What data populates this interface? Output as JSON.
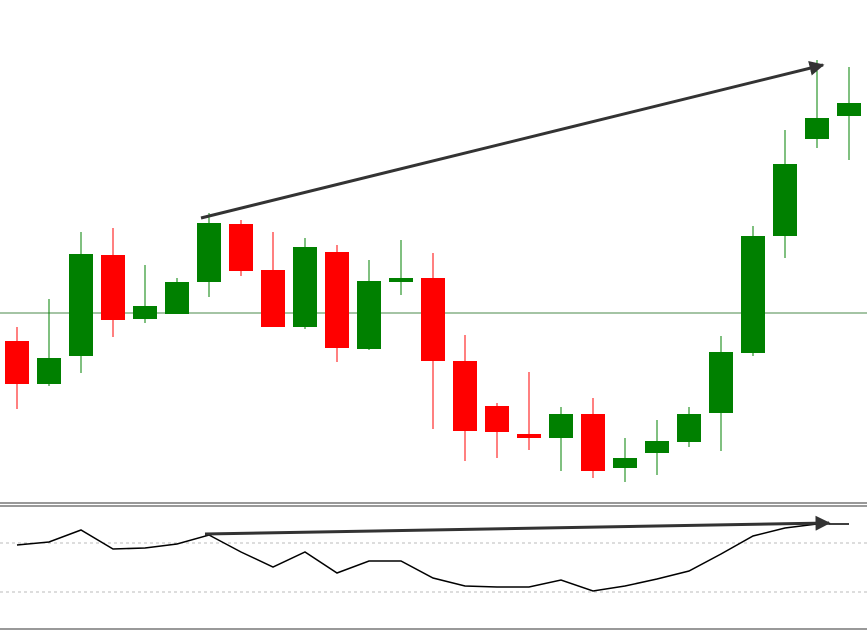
{
  "chart_data": [
    {
      "type": "candlestick",
      "open": [
        159,
        116,
        144,
        245,
        181,
        186,
        218,
        276,
        230,
        173,
        248,
        151,
        218,
        222,
        139,
        94,
        66,
        62,
        86,
        32,
        47,
        58,
        87,
        147,
        264,
        361,
        384
      ],
      "high": [
        173,
        201,
        268,
        272,
        235,
        222,
        287,
        280,
        268,
        262,
        255,
        240,
        260,
        247,
        165,
        97,
        128,
        93,
        102,
        62,
        80,
        93,
        164,
        274,
        370,
        440,
        433
      ],
      "low": [
        91,
        114,
        127,
        163,
        177,
        186,
        203,
        224,
        173,
        171,
        138,
        150,
        205,
        71,
        39,
        42,
        50,
        29,
        22,
        18,
        25,
        53,
        49,
        144,
        242,
        352,
        340
      ],
      "close": [
        116,
        142,
        246,
        180,
        194,
        218,
        277,
        229,
        173,
        253,
        152,
        219,
        222,
        139,
        69,
        68,
        62,
        86,
        29,
        42,
        59,
        86,
        148,
        264,
        336,
        382,
        397
      ],
      "up_color": "#008000",
      "down_color": "#ff0000",
      "ylim": [
        0,
        500
      ],
      "hline": 187,
      "hline_color": "#4a8a4a"
    },
    {
      "type": "line",
      "values": [
        84,
        87,
        99,
        80,
        81,
        85,
        94,
        77,
        62,
        77,
        56,
        68,
        68,
        51,
        43,
        42,
        42,
        49,
        38,
        43,
        50,
        58,
        75,
        93,
        101,
        105,
        105
      ],
      "color": "#000000",
      "ylim": [
        0,
        123
      ],
      "levels": [
        86,
        37
      ]
    }
  ]
}
